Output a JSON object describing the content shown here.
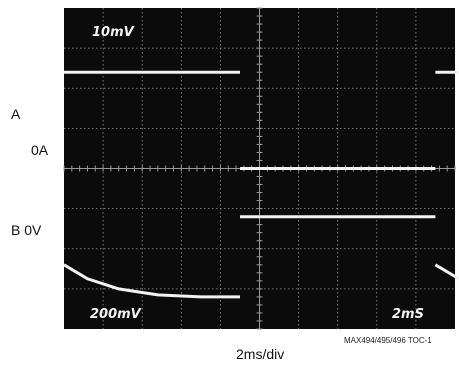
{
  "colors": {
    "screen": "#0b0b0b",
    "grid": "#9a9a9a",
    "trace": "#f2f2f2",
    "label": "#111111"
  },
  "labels": {
    "channel_a": "A",
    "channel_a_zero": "0A",
    "channel_b": "B  0V",
    "time_per_div": "2ms/div",
    "figure_id": "MAX494/495/496 TOC-1"
  },
  "screen_text": {
    "ch1_scale": "10mV",
    "ch2_scale": "200mV",
    "timebase": "2mS"
  },
  "chart_data": {
    "type": "line",
    "title": "",
    "xlabel": "2ms/div",
    "ylabel": "",
    "grid": true,
    "x_unit": "ms",
    "xlim": [
      0,
      20
    ],
    "ylim_div": [
      -4,
      4
    ],
    "divisions": {
      "x": 10,
      "y": 8
    },
    "series": [
      {
        "name": "A",
        "points_div": [
          [
            0.0,
            2.4
          ],
          [
            4.5,
            2.4
          ],
          [
            4.5,
            0.0
          ],
          [
            9.5,
            0.0
          ],
          [
            9.5,
            2.4
          ],
          [
            14.5,
            2.4
          ],
          [
            14.5,
            0.0
          ],
          [
            20.0,
            0.0
          ]
        ]
      },
      {
        "name": "B",
        "points_div": [
          [
            0.0,
            -2.4
          ],
          [
            0.6,
            -2.75
          ],
          [
            1.4,
            -3.0
          ],
          [
            2.4,
            -3.15
          ],
          [
            3.5,
            -3.2
          ],
          [
            4.5,
            -3.2
          ],
          [
            4.5,
            -1.2
          ],
          [
            9.5,
            -1.2
          ],
          [
            9.5,
            -2.4
          ],
          [
            10.1,
            -2.75
          ],
          [
            10.9,
            -3.0
          ],
          [
            11.9,
            -3.15
          ],
          [
            13.0,
            -3.2
          ],
          [
            14.5,
            -3.2
          ],
          [
            14.5,
            -1.2
          ],
          [
            20.0,
            -1.2
          ]
        ]
      }
    ]
  }
}
